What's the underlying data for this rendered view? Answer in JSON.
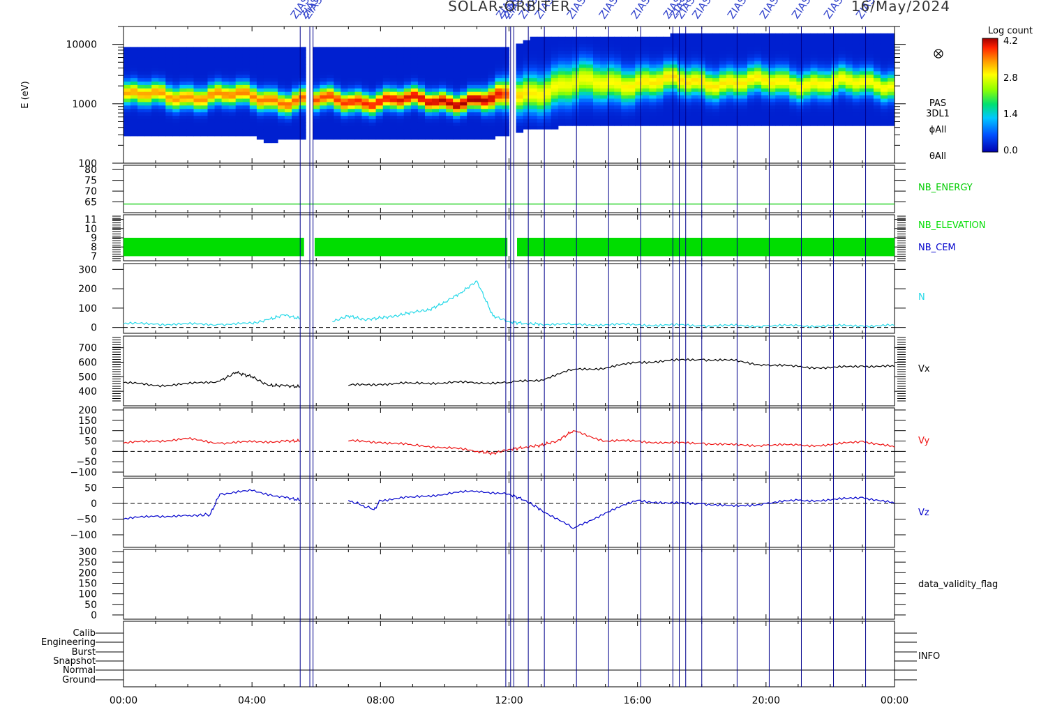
{
  "header": {
    "title": "SOLAR-ORBITER",
    "date": "16/May/2024"
  },
  "colorbar": {
    "title": "Log count",
    "ticks": [
      "4.2",
      "2.8",
      "1.4",
      "0.0"
    ]
  },
  "time_axis": [
    "00:00",
    "04:00",
    "08:00",
    "12:00",
    "16:00",
    "20:00",
    "00:00"
  ],
  "event_marker_label": "ZIAS",
  "event_marker_hours": [
    5.5,
    5.8,
    5.9,
    11.9,
    12.05,
    12.15,
    12.6,
    13.1,
    14.1,
    15.1,
    16.1,
    17.1,
    17.3,
    17.5,
    18.0,
    19.1,
    20.1,
    21.1,
    22.1,
    23.1
  ],
  "chart_data": [
    {
      "type": "heatmap",
      "panel": "spectrogram",
      "ylabel": "E (eV)",
      "yscale": "log",
      "ytick_labels": [
        "10000",
        "1000",
        "100"
      ],
      "ylim": [
        100,
        20000
      ],
      "zlabel": "Log count",
      "zlim": [
        0.0,
        4.2
      ],
      "side_labels": [
        "PAS",
        "3DL1",
        "ϕAll",
        "θAll"
      ],
      "data_gaps_hours": [
        [
          5.65,
          5.95
        ],
        [
          11.95,
          12.2
        ]
      ]
    },
    {
      "type": "line",
      "panel": "nb_energy",
      "yticks": [
        "80",
        "75",
        "70",
        "65"
      ],
      "ylim": [
        60,
        82
      ],
      "series": [
        {
          "name": "NB_ENERGY",
          "color": "#00cc00",
          "value": 64
        }
      ]
    },
    {
      "type": "area",
      "panel": "nb_elevation",
      "yticks": [
        "11",
        "10",
        "9",
        "8",
        "7"
      ],
      "ylim": [
        6.5,
        11.5
      ],
      "series": [
        {
          "name": "NB_ELEVATION",
          "color": "#00dd00",
          "range": [
            7,
            9
          ]
        },
        {
          "name": "NB_CEM",
          "color": "#0000cc"
        }
      ]
    },
    {
      "type": "line",
      "panel": "density",
      "yticks": [
        "300",
        "200",
        "100",
        "0"
      ],
      "ylim": [
        -30,
        330
      ],
      "series": [
        {
          "name": "N",
          "color": "#22d8e8",
          "x": [
            0,
            1,
            2,
            3,
            4,
            4.5,
            5,
            5.5,
            6,
            6.5,
            7,
            7.5,
            8,
            8.5,
            9,
            9.5,
            10,
            10.5,
            11,
            11.5,
            12,
            12.5,
            13,
            14,
            15,
            16,
            17,
            18,
            19,
            20,
            21,
            22,
            23,
            24
          ],
          "y": [
            20,
            18,
            17,
            16,
            20,
            40,
            65,
            45,
            null,
            30,
            60,
            40,
            50,
            60,
            80,
            90,
            130,
            180,
            240,
            60,
            30,
            20,
            18,
            15,
            15,
            14,
            12,
            10,
            9,
            8,
            9,
            8,
            9,
            10
          ]
        }
      ]
    },
    {
      "type": "line",
      "panel": "vx",
      "yticks": [
        "700",
        "600",
        "500",
        "400"
      ],
      "ylim": [
        300,
        780
      ],
      "series": [
        {
          "name": "Vx",
          "color": "#000000",
          "x": [
            0,
            1,
            2,
            3,
            3.5,
            4,
            4.5,
            5,
            5.5,
            6,
            7,
            8,
            9,
            10,
            11,
            12,
            13,
            14,
            15,
            16,
            17,
            18,
            19,
            20,
            21,
            22,
            23,
            24
          ],
          "y": [
            460,
            440,
            450,
            470,
            530,
            500,
            440,
            440,
            430,
            null,
            440,
            450,
            455,
            460,
            460,
            460,
            480,
            550,
            560,
            600,
            610,
            620,
            610,
            580,
            570,
            560,
            575,
            570
          ]
        }
      ]
    },
    {
      "type": "line",
      "panel": "vy",
      "yticks": [
        "200",
        "150",
        "100",
        "50",
        "0",
        "−50",
        "−100"
      ],
      "ylim": [
        -120,
        210
      ],
      "series": [
        {
          "name": "Vy",
          "color": "#ee1111",
          "x": [
            0,
            1,
            2,
            3,
            4,
            5,
            5.5,
            6,
            7,
            8,
            9,
            10,
            11,
            11.5,
            12,
            12.5,
            13,
            13.5,
            14,
            15,
            16,
            17,
            18,
            19,
            20,
            21,
            22,
            23,
            24
          ],
          "y": [
            40,
            50,
            60,
            40,
            45,
            50,
            50,
            null,
            50,
            45,
            30,
            20,
            0,
            -10,
            10,
            20,
            30,
            50,
            100,
            50,
            50,
            40,
            40,
            30,
            30,
            30,
            30,
            50,
            20
          ]
        }
      ]
    },
    {
      "type": "line",
      "panel": "vz",
      "yticks": [
        "50",
        "0",
        "−50",
        "−100"
      ],
      "ylim": [
        -140,
        80
      ],
      "series": [
        {
          "name": "Vz",
          "color": "#0000cc",
          "x": [
            0,
            1,
            2,
            2.7,
            3,
            4,
            5,
            5.5,
            6,
            7,
            7.8,
            8,
            9,
            10,
            11,
            12,
            12.5,
            13,
            14,
            15,
            16,
            17,
            18,
            19,
            20,
            21,
            22,
            23,
            24
          ],
          "y": [
            -50,
            -40,
            -40,
            -35,
            30,
            40,
            20,
            10,
            null,
            10,
            -20,
            10,
            20,
            30,
            40,
            30,
            10,
            -20,
            -80,
            -30,
            10,
            0,
            0,
            -10,
            0,
            10,
            10,
            20,
            0
          ]
        }
      ]
    },
    {
      "type": "line",
      "panel": "data_validity",
      "yticks": [
        "300",
        "250",
        "200",
        "150",
        "100",
        "50",
        "0"
      ],
      "ylim": [
        -20,
        310
      ],
      "series": [
        {
          "name": "data_validity_flag"
        }
      ]
    },
    {
      "type": "table",
      "panel": "info",
      "category_labels": [
        "Calib",
        "Engineering",
        "Burst",
        "Snapshot",
        "Normal",
        "Ground"
      ],
      "series": [
        {
          "name": "INFO"
        }
      ]
    }
  ]
}
